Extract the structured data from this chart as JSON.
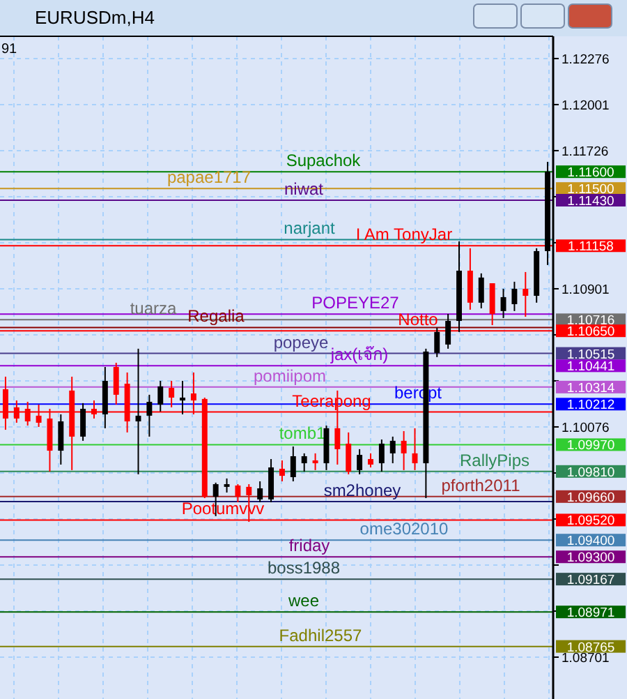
{
  "chart_data": {
    "type": "candlestick",
    "title": "EURUSDm,H4",
    "tick_labels": "y",
    "grid": true,
    "categories": [
      null,
      null,
      null,
      null,
      null,
      null,
      null,
      null,
      null,
      null,
      null,
      null,
      null,
      null,
      null,
      null,
      null,
      null,
      null,
      null,
      null,
      null,
      null,
      null,
      null,
      null,
      null,
      null,
      null,
      null,
      null,
      null,
      null,
      null,
      null,
      null,
      null,
      null,
      null,
      null,
      null,
      null,
      null,
      null,
      null,
      null,
      null,
      null,
      null,
      null
    ],
    "ylim": [
      1.08451,
      1.12409
    ],
    "yticks": [
      {
        "value": 1.12276,
        "label": "1.12276"
      },
      {
        "value": 1.12001,
        "label": "1.12001"
      },
      {
        "value": 1.11726,
        "label": "1.11726"
      },
      {
        "value": 1.11451,
        "label": null
      },
      {
        "value": 1.11176,
        "label": null
      },
      {
        "value": 1.10901,
        "label": "1.10901"
      },
      {
        "value": 1.10626,
        "label": null
      },
      {
        "value": 1.10351,
        "label": null
      },
      {
        "value": 1.10076,
        "label": "1.10076"
      },
      {
        "value": 1.09801,
        "label": null
      },
      {
        "value": 1.09526,
        "label": null
      },
      {
        "value": 1.09251,
        "label": null
      },
      {
        "value": 1.08976,
        "label": null
      },
      {
        "value": 1.08701,
        "label": "1.08701"
      }
    ],
    "ohlc": [
      [
        1.10301,
        1.10376,
        1.10059,
        1.10126
      ],
      [
        1.10193,
        1.10234,
        1.10101,
        1.10126
      ],
      [
        1.10184,
        1.10226,
        1.10084,
        1.10109
      ],
      [
        1.10143,
        1.10209,
        1.10076,
        1.10101
      ],
      [
        1.10126,
        1.10184,
        1.09809,
        1.09934
      ],
      [
        1.09934,
        1.10151,
        1.09851,
        1.10109
      ],
      [
        1.10293,
        1.10376,
        1.09818,
        1.10018
      ],
      [
        1.10018,
        1.10218,
        1.09993,
        1.10184
      ],
      [
        1.10184,
        1.10234,
        1.10126,
        1.10151
      ],
      [
        1.10151,
        1.10434,
        1.10068,
        1.10351
      ],
      [
        1.10434,
        1.10459,
        1.10209,
        1.10268
      ],
      [
        1.10334,
        1.10401,
        1.10043,
        1.10109
      ],
      [
        1.10109,
        1.10543,
        1.09793,
        1.10143
      ],
      [
        1.10143,
        1.10268,
        1.10018,
        1.10226
      ],
      [
        1.10209,
        1.10351,
        1.10168,
        1.10318
      ],
      [
        1.10309,
        1.10351,
        1.10193,
        1.10251
      ],
      [
        1.10234,
        1.10351,
        1.10151,
        1.10251
      ],
      [
        1.10276,
        1.10401,
        1.10151,
        1.10234
      ],
      [
        1.10243,
        1.10251,
        1.09651,
        1.09659
      ],
      [
        1.09659,
        1.09743,
        1.09543,
        1.09734
      ],
      [
        1.09718,
        1.09768,
        1.09684,
        1.09734
      ],
      [
        1.09726,
        1.09734,
        1.09626,
        1.09659
      ],
      [
        1.09718,
        1.09734,
        1.09509,
        1.09668
      ],
      [
        1.09643,
        1.09751,
        1.09626,
        1.09709
      ],
      [
        1.09643,
        1.09884,
        1.09626,
        1.09834
      ],
      [
        1.09826,
        1.09876,
        1.09751,
        1.09784
      ],
      [
        1.09776,
        1.09959,
        1.09751,
        1.09901
      ],
      [
        1.09859,
        1.09918,
        1.09809,
        1.09901
      ],
      [
        1.09876,
        1.09918,
        1.09818,
        1.09859
      ],
      [
        1.09859,
        1.10084,
        1.09818,
        1.10068
      ],
      [
        1.10068,
        1.10293,
        1.09851,
        1.09943
      ],
      [
        1.09976,
        1.10043,
        1.09793,
        1.09809
      ],
      [
        1.09818,
        1.09943,
        1.09793,
        1.09909
      ],
      [
        1.09884,
        1.09918,
        1.09834,
        1.09851
      ],
      [
        1.09859,
        1.10001,
        1.09809,
        1.09976
      ],
      [
        1.09918,
        1.10018,
        1.09859,
        1.09993
      ],
      [
        1.09993,
        1.10051,
        1.09818,
        1.09918
      ],
      [
        1.09918,
        1.10068,
        1.09818,
        1.09859
      ],
      [
        1.09859,
        1.10543,
        1.09651,
        1.10526
      ],
      [
        1.10518,
        1.10668,
        1.10493,
        1.10643
      ],
      [
        1.10568,
        1.10751,
        1.10543,
        1.10709
      ],
      [
        1.10709,
        1.11184,
        1.10643,
        1.11009
      ],
      [
        1.11009,
        1.11143,
        1.10776,
        1.10818
      ],
      [
        1.10818,
        1.10993,
        1.10784,
        1.10968
      ],
      [
        1.10934,
        1.10934,
        1.10684,
        1.10751
      ],
      [
        1.10768,
        1.10901,
        1.10726,
        1.10851
      ],
      [
        1.10809,
        1.10943,
        1.10768,
        1.10901
      ],
      [
        1.10901,
        1.11001,
        1.10734,
        1.10859
      ],
      [
        1.10859,
        1.11143,
        1.10818,
        1.11126
      ],
      [
        1.11126,
        1.11659,
        1.11043,
        1.11601
      ]
    ],
    "colors": [
      "#ff0000",
      "#ff0000",
      "#ff0000",
      "#ff0000",
      "#ff0000",
      "#000000",
      "#ff0000",
      "#000000",
      "#ff0000",
      "#000000",
      "#ff0000",
      "#ff0000",
      "#000000",
      "#000000",
      "#000000",
      "#ff0000",
      "#000000",
      "#ff0000",
      "#ff0000",
      "#000000",
      "#000000",
      "#ff0000",
      "#ff0000",
      "#000000",
      "#000000",
      "#ff0000",
      "#000000",
      "#000000",
      "#ff0000",
      "#000000",
      "#ff0000",
      "#ff0000",
      "#000000",
      "#ff0000",
      "#000000",
      "#000000",
      "#ff0000",
      "#ff0000",
      "#000000",
      "#000000",
      "#000000",
      "#000000",
      "#ff0000",
      "#000000",
      "#ff0000",
      "#000000",
      "#000000",
      "#ff0000",
      "#000000",
      "#000000"
    ],
    "ref_lines": [
      {
        "axis": "y",
        "value": 1.116,
        "label": "Supachok",
        "color": "#008000"
      },
      {
        "axis": "y",
        "value": 1.115,
        "label": "papae1717",
        "color": "#c8961e"
      },
      {
        "axis": "y",
        "value": 1.1143,
        "label": "niwat",
        "color": "#5a0a8a"
      },
      {
        "axis": "y",
        "value": 1.11158,
        "label": "I Am TonyJar",
        "color": "#ff0000"
      },
      {
        "axis": "y",
        "value": 1.11195,
        "label": "narjant",
        "color": "#1a8a8a"
      },
      {
        "axis": "y",
        "value": 1.10716,
        "label": "tuarza",
        "color": "#707070"
      },
      {
        "axis": "y",
        "value": 1.1075,
        "label": "POPEYE27",
        "color": "#9400d3"
      },
      {
        "axis": "y",
        "value": 1.1065,
        "label": "Notto",
        "color": "#ff0000"
      },
      {
        "axis": "y",
        "value": 1.1067,
        "label": "Regalia",
        "color": "#8b0000"
      },
      {
        "axis": "y",
        "value": 1.10515,
        "label": "popeye",
        "color": "#483d8b"
      },
      {
        "axis": "y",
        "value": 1.10441,
        "label": "jax(เจ๊ก)",
        "color": "#9400d3"
      },
      {
        "axis": "y",
        "value": 1.10314,
        "label": "pomiipom",
        "color": "#ba55d3"
      },
      {
        "axis": "y",
        "value": 1.10212,
        "label": "beropt",
        "color": "#0000ff"
      },
      {
        "axis": "y",
        "value": 1.10165,
        "label": "Teerapong",
        "color": "#ff0000"
      },
      {
        "axis": "y",
        "value": 1.0997,
        "label": "tomb1",
        "color": "#32cd32"
      },
      {
        "axis": "y",
        "value": 1.0981,
        "label": "RallyPips",
        "color": "#2e8b57"
      },
      {
        "axis": "y",
        "value": 1.0966,
        "label": "pforth2011",
        "color": "#a52a2a"
      },
      {
        "axis": "y",
        "value": 1.0963,
        "label": "sm2honey",
        "color": "#191970"
      },
      {
        "axis": "y",
        "value": 1.0952,
        "label": "Pootumvvv",
        "color": "#ff0000"
      },
      {
        "axis": "y",
        "value": 1.094,
        "label": "ome302010",
        "color": "#4682b4"
      },
      {
        "axis": "y",
        "value": 1.093,
        "label": "friday",
        "color": "#800080"
      },
      {
        "axis": "y",
        "value": 1.09167,
        "label": "boss1988",
        "color": "#2f4f4f"
      },
      {
        "axis": "y",
        "value": 1.08971,
        "label": "wee",
        "color": "#006400"
      },
      {
        "axis": "y",
        "value": 1.08765,
        "label": "Fadhil2557",
        "color": "#808000"
      }
    ],
    "annotations": [
      "91",
      "1.11600",
      "1.11500",
      "1.11430",
      "1.11158",
      "1.10716",
      "1.10650",
      "1.10515",
      "1.10441",
      "1.10314",
      "1.10212",
      "1.09970",
      "1.09810",
      "1.09660",
      "1.09520",
      "1.09400",
      "1.09300",
      "1.09167",
      "1.08971",
      "1.08765"
    ]
  }
}
